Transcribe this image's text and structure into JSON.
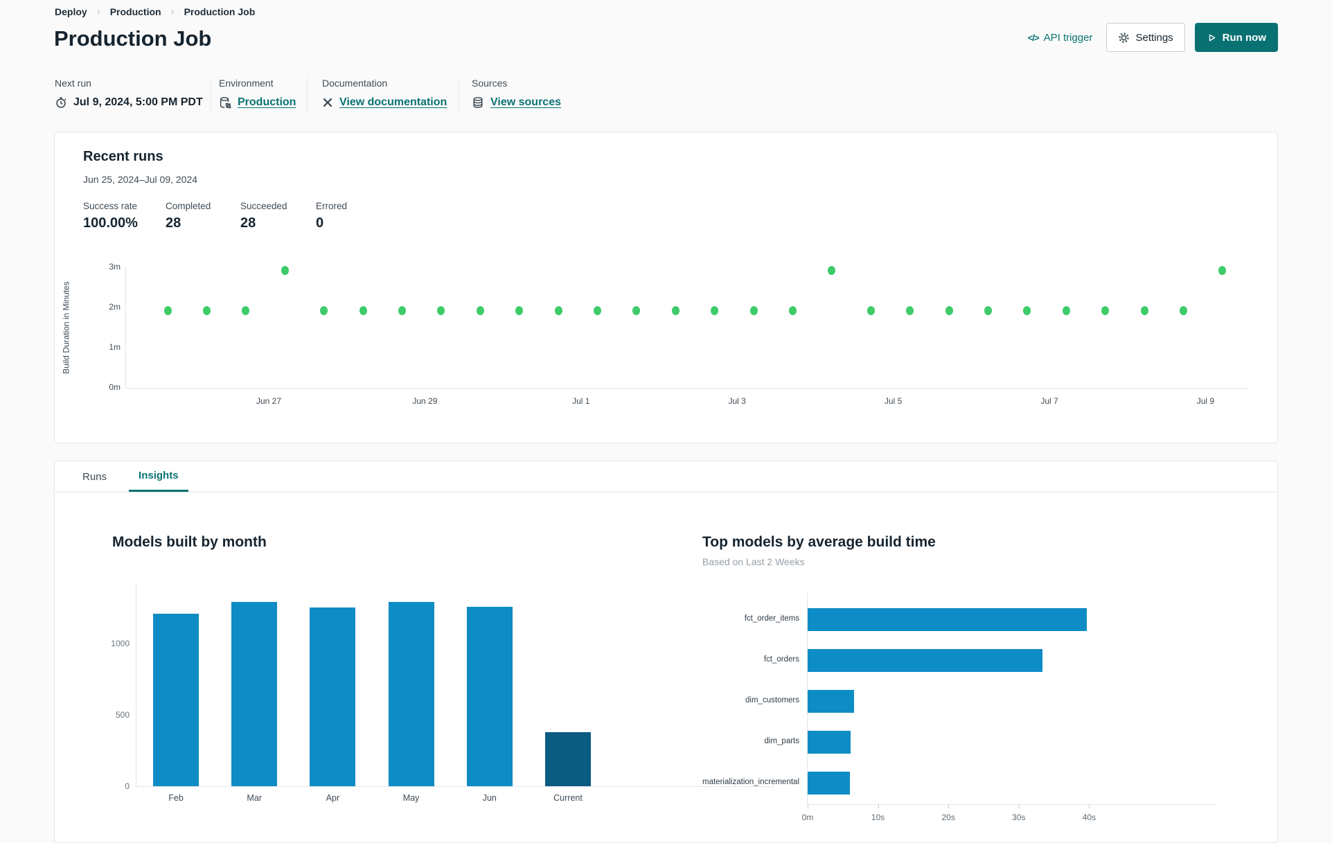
{
  "breadcrumb": {
    "items": [
      "Deploy",
      "Production",
      "Production Job"
    ]
  },
  "header": {
    "title": "Production Job",
    "api_trigger_label": "API trigger",
    "settings_label": "Settings",
    "run_now_label": "Run now"
  },
  "meta": {
    "columns": [
      {
        "label": "Next run",
        "value": "Jul 9, 2024, 5:00 PM PDT",
        "icon": "clock-icon"
      },
      {
        "label": "Environment",
        "value": "Production",
        "icon": "environment-icon"
      },
      {
        "label": "Documentation",
        "value": "View documentation",
        "icon": "docs-icon"
      },
      {
        "label": "Sources",
        "value": "View sources",
        "icon": "database-icon"
      }
    ]
  },
  "recent_runs": {
    "title": "Recent runs",
    "date_range": "Jun 25, 2024–Jul 09, 2024",
    "stats": [
      {
        "label": "Success rate",
        "value": "100.00%"
      },
      {
        "label": "Completed",
        "value": "28"
      },
      {
        "label": "Succeeded",
        "value": "28"
      },
      {
        "label": "Errored",
        "value": "0"
      }
    ]
  },
  "tabs": [
    {
      "label": "Runs",
      "active": false
    },
    {
      "label": "Insights",
      "active": true
    }
  ],
  "colors": {
    "accent_teal": "#0a7172",
    "run_point_green": "#3ecb69",
    "bar_blue": "#0d8cc5",
    "bar_dark": "#0b5c80"
  },
  "chart_data": [
    {
      "id": "run_durations",
      "type": "scatter",
      "title": "Recent runs build durations",
      "ylabel": "Build Duration in Minutes",
      "y_ticks": [
        "0m",
        "1m",
        "2m",
        "3m"
      ],
      "ylim": [
        0,
        3
      ],
      "x_ticks": [
        "Jun 27",
        "Jun 29",
        "Jul 1",
        "Jul 3",
        "Jul 5",
        "Jul 7",
        "Jul 9"
      ],
      "x_range": "Jun 25, 2024 to Jul 09, 2024",
      "point_color": "#3ecb69",
      "durations_minutes": [
        1.93,
        1.93,
        1.93,
        2.93,
        1.93,
        1.93,
        1.93,
        1.93,
        1.93,
        1.93,
        1.93,
        1.93,
        1.93,
        1.93,
        1.93,
        1.93,
        1.93,
        2.93,
        1.93,
        1.93,
        1.93,
        1.93,
        1.93,
        1.93,
        1.93,
        1.93,
        1.93,
        2.93
      ]
    },
    {
      "id": "models_by_month",
      "type": "bar",
      "title": "Models built by month",
      "categories": [
        "Feb",
        "Mar",
        "Apr",
        "May",
        "Jun",
        "Current"
      ],
      "values": [
        1210,
        1295,
        1255,
        1295,
        1260,
        380
      ],
      "y_ticks": [
        0,
        500,
        1000
      ],
      "ylim": [
        0,
        1430
      ],
      "bar_color": "#0d8cc5",
      "highlight_color": "#0b5c80",
      "highlight_index": 5
    },
    {
      "id": "top_models_by_avg_build_time",
      "type": "bar-horizontal",
      "title": "Top models by average build time",
      "subtitle": "Based on Last 2 Weeks",
      "categories": [
        "fct_order_items",
        "fct_orders",
        "dim_customers",
        "dim_parts",
        "materialization_incremental"
      ],
      "values_seconds": [
        39.7,
        33.4,
        6.6,
        6.1,
        6.0
      ],
      "x_ticks": [
        {
          "label": "0m",
          "value": 0
        },
        {
          "label": "10s",
          "value": 10
        },
        {
          "label": "20s",
          "value": 20
        },
        {
          "label": "30s",
          "value": 30
        },
        {
          "label": "40s",
          "value": 40
        }
      ],
      "xlim": [
        0,
        43
      ],
      "bar_color": "#0d8cc5"
    }
  ]
}
